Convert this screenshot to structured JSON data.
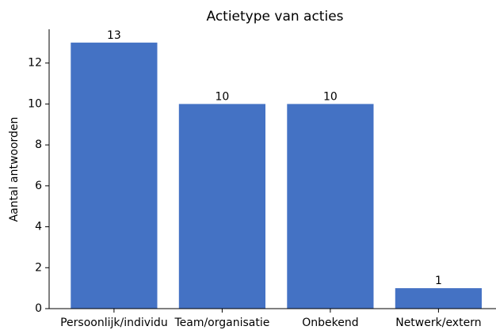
{
  "chart_data": {
    "type": "bar",
    "title": "Actietype van acties",
    "ylabel": "Aantal antwoorden",
    "categories": [
      "Persoonlijk/individu",
      "Team/organisatie",
      "Onbekend",
      "Netwerk/extern"
    ],
    "values": [
      13,
      10,
      10,
      1
    ],
    "color": "#4472c4",
    "ylim": [
      0,
      13.65
    ],
    "yticks": [
      0,
      2,
      4,
      6,
      8,
      10,
      12
    ],
    "grid": false
  }
}
